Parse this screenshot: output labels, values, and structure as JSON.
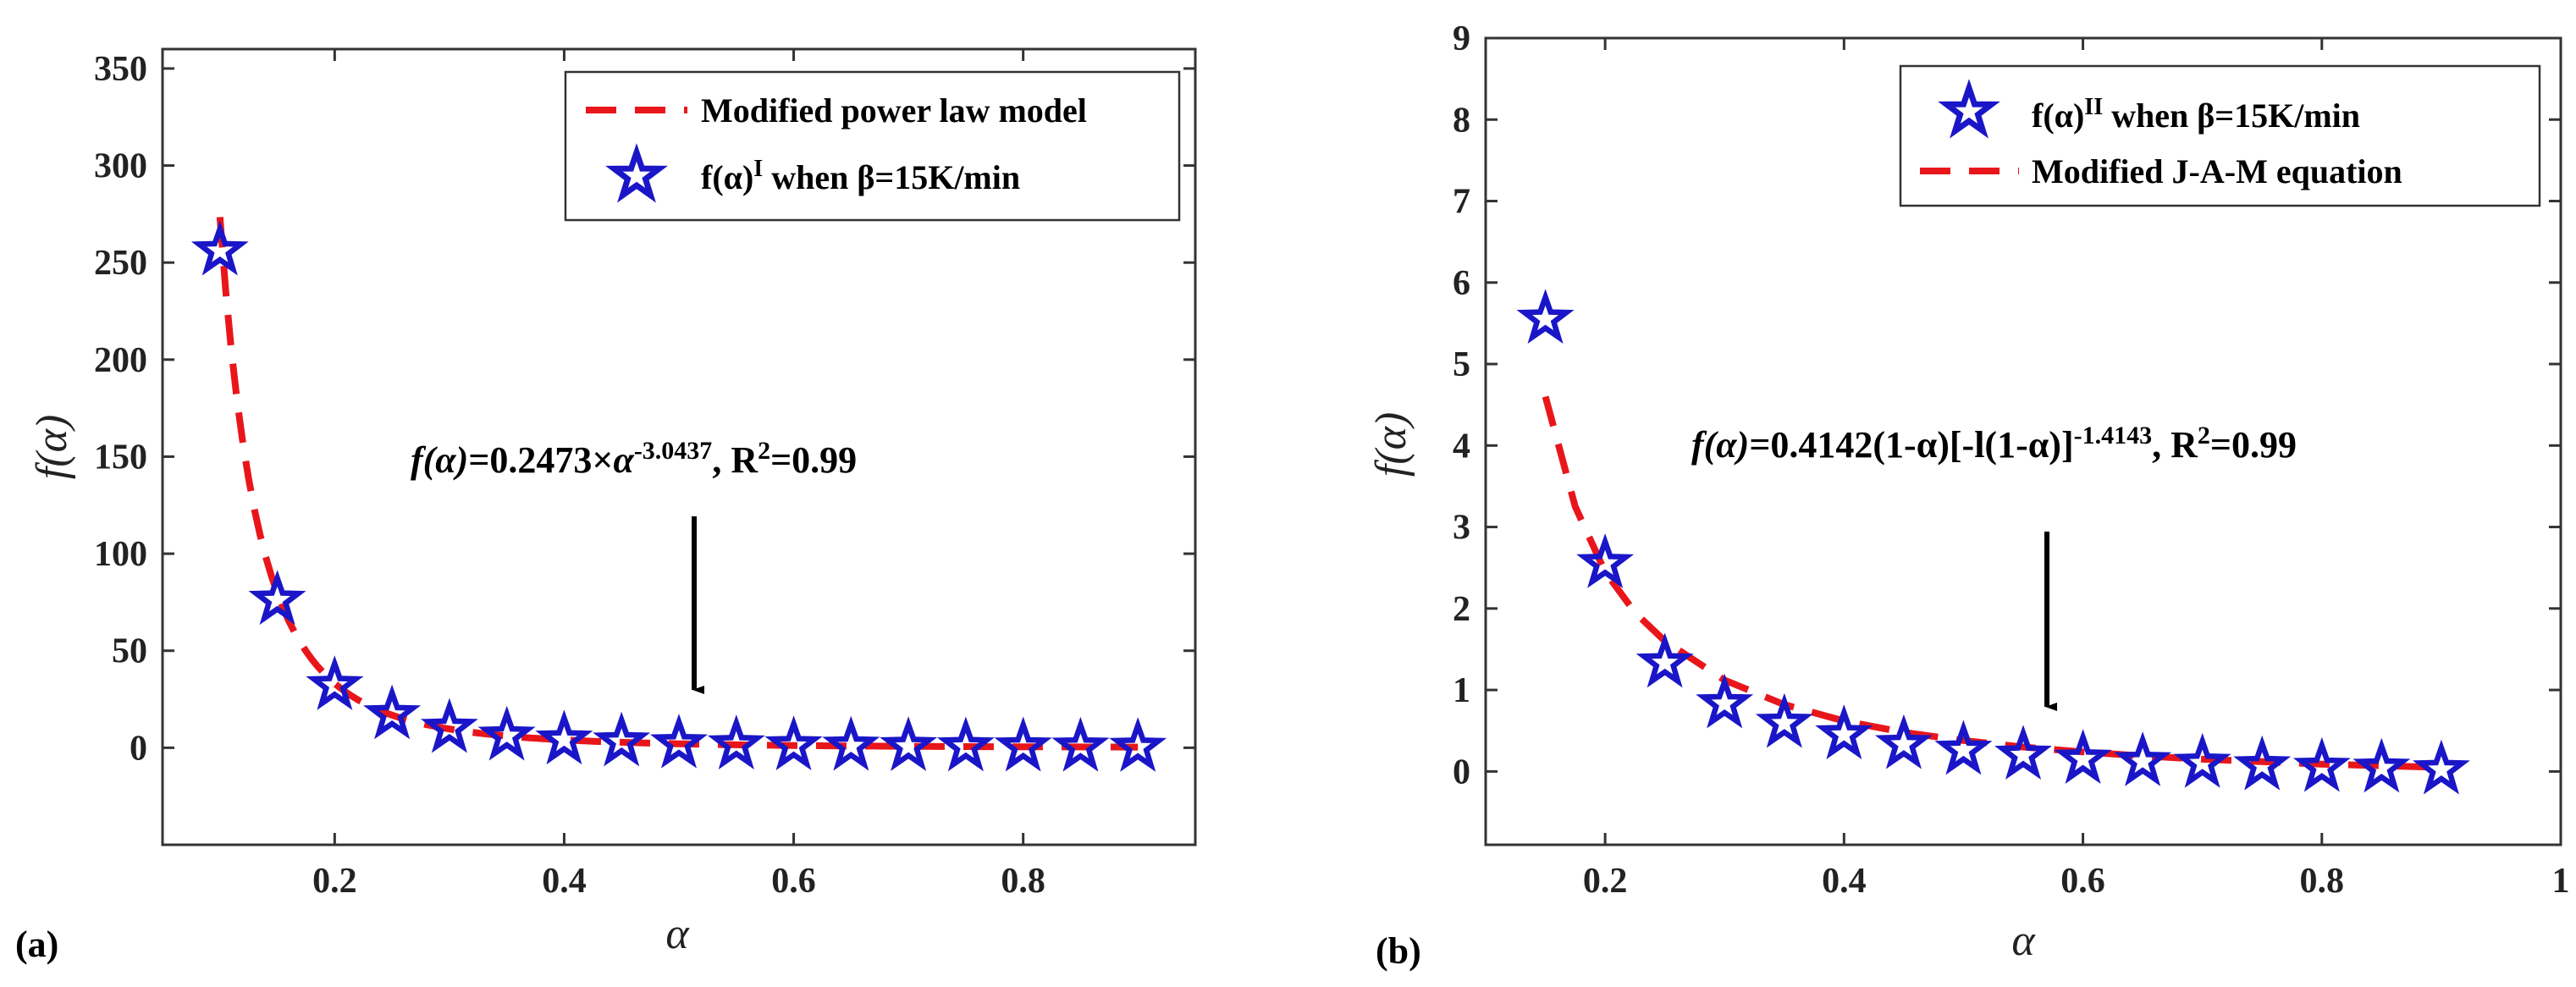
{
  "chart_data": [
    {
      "type": "line",
      "panel_label": "(a)",
      "xlabel": "α",
      "ylabel": "f(α)",
      "xlim": [
        0.05,
        0.95
      ],
      "ylim": [
        -50,
        360
      ],
      "xticks": [
        0.2,
        0.4,
        0.6,
        0.8
      ],
      "xtick_labels": [
        "0.2",
        "0.4",
        "0.6",
        "0.8"
      ],
      "yticks": [
        0,
        50,
        100,
        150,
        200,
        250,
        300,
        350
      ],
      "ytick_labels": [
        "0",
        "50",
        "100",
        "150",
        "200",
        "250",
        "300",
        "350"
      ],
      "legend_position": "top-right",
      "series": [
        {
          "name": "Modified power law model",
          "legend_label": "Modified power law model",
          "style": "dashed-line",
          "color": "#e8161b",
          "model": {
            "kind": "power",
            "a": 0.2473,
            "b": -3.0437
          },
          "x": [
            0.1,
            0.11,
            0.12,
            0.13,
            0.14,
            0.15,
            0.17,
            0.19,
            0.21,
            0.24,
            0.27,
            0.3,
            0.35,
            0.4,
            0.5,
            0.6,
            0.7,
            0.8,
            0.9
          ],
          "values": [
            273,
            205,
            157,
            123,
            98.5,
            80.2,
            54.9,
            39.1,
            28.8,
            19.9,
            13.9,
            10.1,
            6.3,
            4.2,
            2.1,
            1.2,
            0.75,
            0.49,
            0.34
          ]
        },
        {
          "name": "f(α)I when β=15K/min",
          "legend_label": {
            "prefix": "f(α)",
            "sup": "I",
            "suffix": " when β=15K/min"
          },
          "style": "star-markers",
          "color": "#1a16c8",
          "x": [
            0.1,
            0.15,
            0.2,
            0.25,
            0.3,
            0.35,
            0.4,
            0.45,
            0.5,
            0.55,
            0.6,
            0.65,
            0.7,
            0.75,
            0.8,
            0.85,
            0.9
          ],
          "values": [
            256,
            76,
            32,
            17,
            10,
            6,
            4,
            3,
            2,
            1.5,
            1,
            0.8,
            0.6,
            0.5,
            0.4,
            0.3,
            0.2
          ]
        }
      ],
      "annotation": {
        "pre": "f(α)",
        "mid": "=0.2473×",
        "base": "α",
        "sup1": "-3.0437",
        "post": ", R",
        "sup2": "2",
        "tail": "=0.99"
      }
    },
    {
      "type": "line",
      "panel_label": "(b)",
      "xlabel": "α",
      "ylabel": "f(α)",
      "xlim": [
        0.1,
        1.0
      ],
      "ylim": [
        -0.9,
        9
      ],
      "xticks": [
        0.2,
        0.4,
        0.6,
        0.8,
        1.0
      ],
      "xtick_labels": [
        "0.2",
        "0.4",
        "0.6",
        "0.8",
        "1"
      ],
      "yticks": [
        0,
        1,
        2,
        3,
        4,
        5,
        6,
        7,
        8,
        9
      ],
      "ytick_labels": [
        "0",
        "1",
        "2",
        "3",
        "4",
        "5",
        "6",
        "7",
        "8",
        "9"
      ],
      "legend_position": "top-right",
      "series": [
        {
          "name": "f(α)II when β=15K/min",
          "legend_label": {
            "prefix": "f(α)",
            "sup": "II",
            "suffix": " when β=15K/min"
          },
          "style": "star-markers",
          "color": "#1a16c8",
          "x": [
            0.15,
            0.2,
            0.25,
            0.3,
            0.35,
            0.4,
            0.45,
            0.5,
            0.55,
            0.6,
            0.65,
            0.7,
            0.75,
            0.8,
            0.85,
            0.9
          ],
          "values": [
            5.55,
            2.55,
            1.33,
            0.83,
            0.59,
            0.45,
            0.33,
            0.26,
            0.2,
            0.15,
            0.12,
            0.1,
            0.07,
            0.05,
            0.04,
            0.02
          ]
        },
        {
          "name": "Modified J-A-M equation",
          "legend_label": "Modified J-A-M equation",
          "style": "dashed-line",
          "color": "#e8161b",
          "x": [
            0.15,
            0.175,
            0.2,
            0.225,
            0.25,
            0.3,
            0.35,
            0.4,
            0.45,
            0.5,
            0.55,
            0.6,
            0.65,
            0.7,
            0.75,
            0.8,
            0.85,
            0.9
          ],
          "values": [
            4.6,
            3.25,
            2.45,
            1.95,
            1.6,
            1.12,
            0.82,
            0.62,
            0.48,
            0.38,
            0.3,
            0.24,
            0.19,
            0.15,
            0.12,
            0.09,
            0.07,
            0.05
          ]
        }
      ],
      "annotation": {
        "pre": "f(α)",
        "mid": "=0.4142(1-α)[-l(1-α)]",
        "sup1": "-1.4143",
        "post": ", R",
        "sup2": "2",
        "tail": "=0.99"
      }
    }
  ]
}
